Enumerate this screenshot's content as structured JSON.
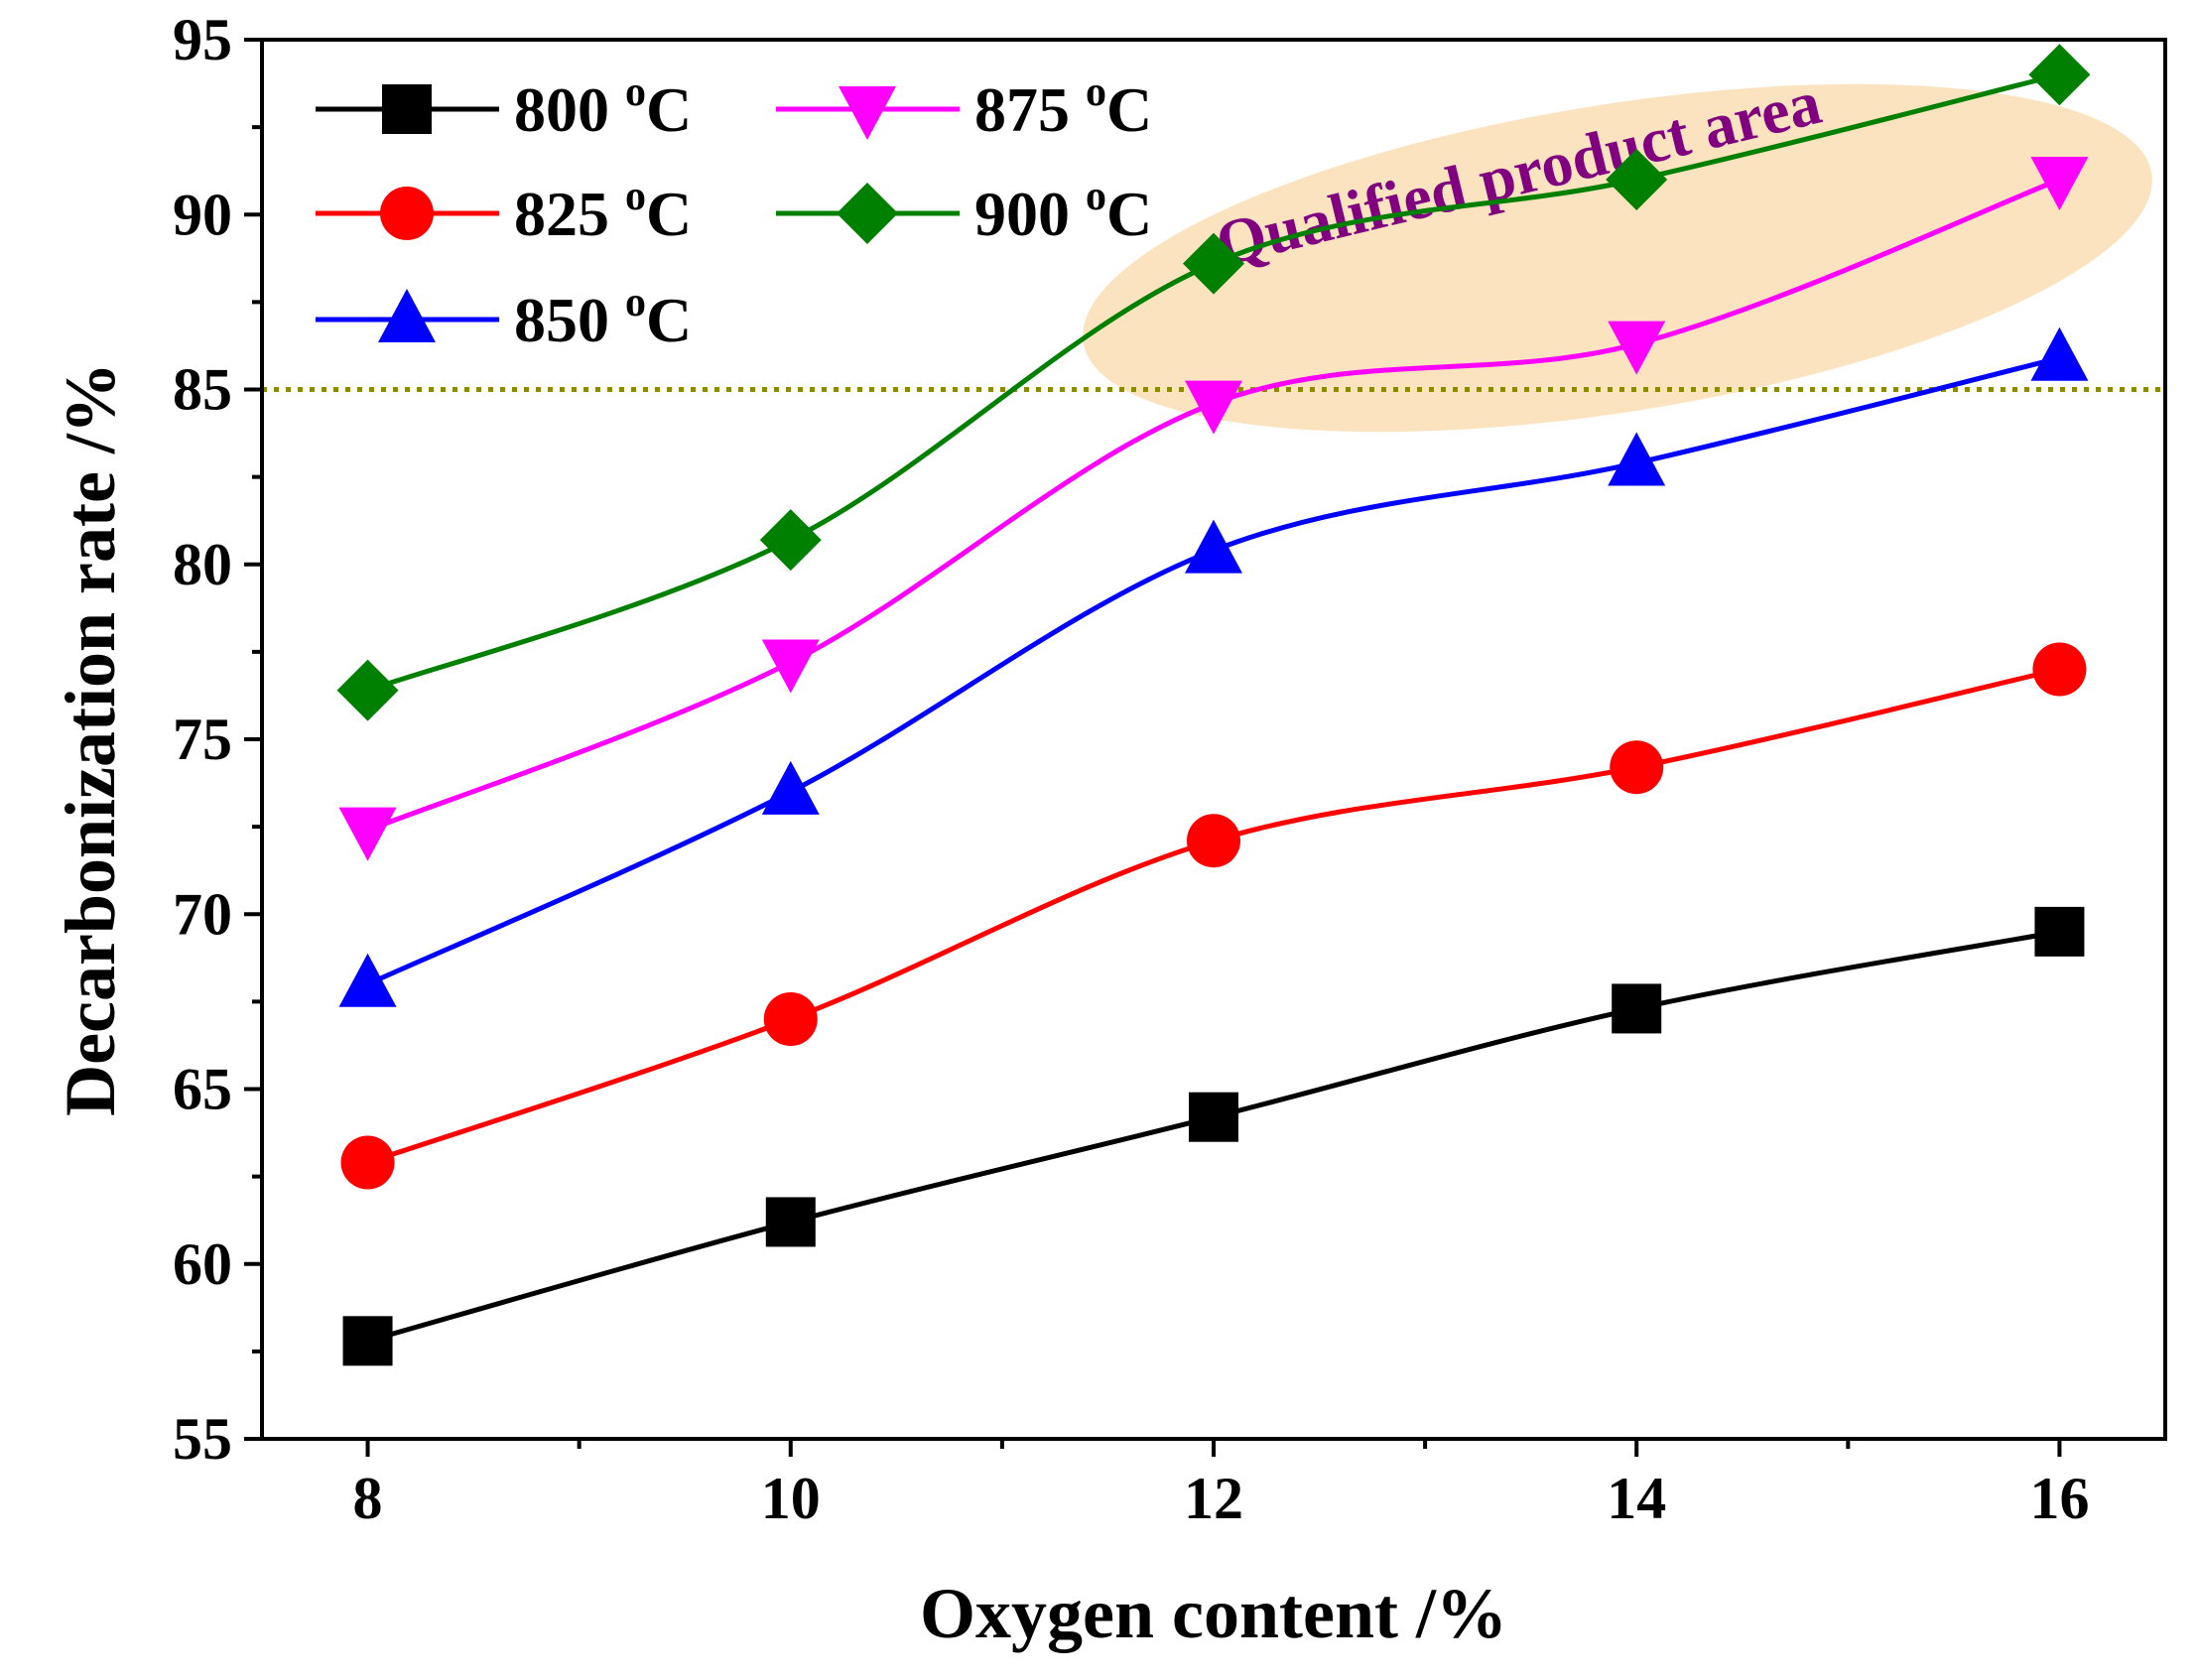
{
  "chart_data": {
    "type": "line",
    "xlabel": "Oxygen content /%",
    "ylabel": "Decarbonization rate /%",
    "xlim": [
      7.5,
      16.5
    ],
    "ylim": [
      55,
      95
    ],
    "xticks": [
      8,
      10,
      12,
      14,
      16
    ],
    "yticks": [
      55,
      60,
      65,
      70,
      75,
      80,
      85,
      90,
      95
    ],
    "x": [
      8,
      10,
      12,
      14,
      16
    ],
    "series": [
      {
        "name": "800 °C",
        "label_base": "800 ",
        "color": "#000000",
        "marker": "square",
        "values": [
          57.8,
          61.2,
          64.2,
          67.3,
          69.5
        ]
      },
      {
        "name": "825 °C",
        "label_base": "825 ",
        "color": "#ff0000",
        "marker": "circle",
        "values": [
          62.9,
          67.0,
          72.1,
          74.2,
          77.0
        ]
      },
      {
        "name": "850 °C",
        "label_base": "850 ",
        "color": "#0000ff",
        "marker": "triangle-up",
        "values": [
          68.0,
          73.5,
          80.4,
          82.9,
          85.9
        ]
      },
      {
        "name": "875 °C",
        "label_base": "875 ",
        "color": "#ff00ff",
        "marker": "triangle-down",
        "values": [
          72.4,
          77.2,
          84.6,
          86.3,
          91.0
        ]
      },
      {
        "name": "900 °C",
        "label_base": "900 ",
        "color": "#008000",
        "marker": "diamond",
        "values": [
          76.4,
          80.7,
          88.6,
          91.0,
          94.0
        ]
      }
    ],
    "reference_line": {
      "y": 85,
      "color": "#8b8b00",
      "style": "dotted"
    },
    "annotation": {
      "text": "Qualified product area",
      "color": "#800080",
      "region_color": "#fbe3c0"
    },
    "legend_placement": "top-left",
    "grid": false
  }
}
